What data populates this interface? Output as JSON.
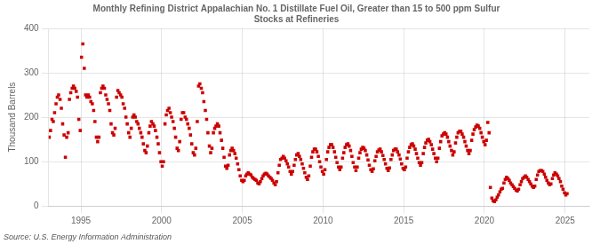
{
  "chart_data": {
    "type": "scatter",
    "title": "Monthly Refining District Appalachian No. 1 Distillate Fuel Oil, Greater than 15 to 500 ppm Sulfur\nStocks at Refineries",
    "ylabel": "Thousand Barrels",
    "annotations": [
      "Source: U.S. Energy Information Administration"
    ],
    "color": "#cc0000",
    "marker": "square",
    "grid": true,
    "xlim": [
      1993.0,
      2026.5
    ],
    "ylim": [
      0,
      400
    ],
    "xticks": [
      1995,
      2000,
      2005,
      2010,
      2015,
      2020,
      2025
    ],
    "yticks": [
      0,
      100,
      200,
      300,
      400
    ],
    "x": [
      1993.04,
      1993.12,
      1993.21,
      1993.29,
      1993.37,
      1993.46,
      1993.54,
      1993.62,
      1993.71,
      1993.79,
      1993.87,
      1993.96,
      1994.04,
      1994.12,
      1994.21,
      1994.29,
      1994.37,
      1994.46,
      1994.54,
      1994.62,
      1994.71,
      1994.79,
      1994.87,
      1994.96,
      1995.04,
      1995.12,
      1995.21,
      1995.29,
      1995.37,
      1995.46,
      1995.54,
      1995.62,
      1995.71,
      1995.79,
      1995.87,
      1995.96,
      1996.04,
      1996.12,
      1996.21,
      1996.29,
      1996.37,
      1996.46,
      1996.54,
      1996.62,
      1996.71,
      1996.79,
      1996.87,
      1996.96,
      1997.04,
      1997.12,
      1997.21,
      1997.29,
      1997.37,
      1997.46,
      1997.54,
      1997.62,
      1997.71,
      1997.79,
      1997.87,
      1997.96,
      1998.04,
      1998.12,
      1998.21,
      1998.29,
      1998.37,
      1998.46,
      1998.54,
      1998.62,
      1998.71,
      1998.79,
      1998.87,
      1998.96,
      1999.04,
      1999.12,
      1999.21,
      1999.29,
      1999.37,
      1999.46,
      1999.54,
      1999.62,
      1999.71,
      1999.79,
      1999.87,
      1999.96,
      2000.04,
      2000.12,
      2000.21,
      2000.29,
      2000.37,
      2000.46,
      2000.54,
      2000.62,
      2000.71,
      2000.79,
      2000.87,
      2000.96,
      2001.04,
      2001.12,
      2001.21,
      2001.29,
      2001.37,
      2001.46,
      2001.54,
      2001.62,
      2001.71,
      2001.79,
      2001.87,
      2001.96,
      2002.04,
      2002.12,
      2002.21,
      2002.29,
      2002.37,
      2002.46,
      2002.54,
      2002.62,
      2002.71,
      2002.79,
      2002.87,
      2002.96,
      2003.04,
      2003.12,
      2003.21,
      2003.29,
      2003.37,
      2003.46,
      2003.54,
      2003.62,
      2003.71,
      2003.79,
      2003.87,
      2003.96,
      2004.04,
      2004.12,
      2004.21,
      2004.29,
      2004.37,
      2004.46,
      2004.54,
      2004.62,
      2004.71,
      2004.79,
      2004.87,
      2004.96,
      2005.04,
      2005.12,
      2005.21,
      2005.29,
      2005.37,
      2005.46,
      2005.54,
      2005.62,
      2005.71,
      2005.79,
      2005.87,
      2005.96,
      2006.04,
      2006.12,
      2006.21,
      2006.29,
      2006.37,
      2006.46,
      2006.54,
      2006.62,
      2006.71,
      2006.79,
      2006.87,
      2006.96,
      2007.04,
      2007.12,
      2007.21,
      2007.29,
      2007.37,
      2007.46,
      2007.54,
      2007.62,
      2007.71,
      2007.79,
      2007.87,
      2007.96,
      2008.04,
      2008.12,
      2008.21,
      2008.29,
      2008.37,
      2008.46,
      2008.54,
      2008.62,
      2008.71,
      2008.79,
      2008.87,
      2008.96,
      2009.04,
      2009.12,
      2009.21,
      2009.29,
      2009.37,
      2009.46,
      2009.54,
      2009.62,
      2009.71,
      2009.79,
      2009.87,
      2009.96,
      2010.04,
      2010.12,
      2010.21,
      2010.29,
      2010.37,
      2010.46,
      2010.54,
      2010.62,
      2010.71,
      2010.79,
      2010.87,
      2010.96,
      2011.04,
      2011.12,
      2011.21,
      2011.29,
      2011.37,
      2011.46,
      2011.54,
      2011.62,
      2011.71,
      2011.79,
      2011.87,
      2011.96,
      2012.04,
      2012.12,
      2012.21,
      2012.29,
      2012.37,
      2012.46,
      2012.54,
      2012.62,
      2012.71,
      2012.79,
      2012.87,
      2012.96,
      2013.04,
      2013.12,
      2013.21,
      2013.29,
      2013.37,
      2013.46,
      2013.54,
      2013.62,
      2013.71,
      2013.79,
      2013.87,
      2013.96,
      2014.04,
      2014.12,
      2014.21,
      2014.29,
      2014.37,
      2014.46,
      2014.54,
      2014.62,
      2014.71,
      2014.79,
      2014.87,
      2014.96,
      2015.04,
      2015.12,
      2015.21,
      2015.29,
      2015.37,
      2015.46,
      2015.54,
      2015.62,
      2015.71,
      2015.79,
      2015.87,
      2015.96,
      2016.04,
      2016.12,
      2016.21,
      2016.29,
      2016.37,
      2016.46,
      2016.54,
      2016.62,
      2016.71,
      2016.79,
      2016.87,
      2016.96,
      2017.04,
      2017.12,
      2017.21,
      2017.29,
      2017.37,
      2017.46,
      2017.54,
      2017.62,
      2017.71,
      2017.79,
      2017.87,
      2017.96,
      2018.04,
      2018.12,
      2018.21,
      2018.29,
      2018.37,
      2018.46,
      2018.54,
      2018.62,
      2018.71,
      2018.79,
      2018.87,
      2018.96,
      2019.04,
      2019.12,
      2019.21,
      2019.29,
      2019.37,
      2019.46,
      2019.54,
      2019.62,
      2019.71,
      2019.79,
      2019.87,
      2019.96,
      2020.04,
      2020.12,
      2020.21,
      2020.29,
      2020.37,
      2020.46,
      2020.54,
      2020.62,
      2020.71,
      2020.79,
      2020.87,
      2020.96,
      2021.04,
      2021.12,
      2021.21,
      2021.29,
      2021.37,
      2021.46,
      2021.54,
      2021.62,
      2021.71,
      2021.79,
      2021.87,
      2021.96,
      2022.04,
      2022.12,
      2022.21,
      2022.29,
      2022.37,
      2022.46,
      2022.54,
      2022.62,
      2022.71,
      2022.79,
      2022.87,
      2022.96,
      2023.04,
      2023.12,
      2023.21,
      2023.29,
      2023.37,
      2023.46,
      2023.54,
      2023.62,
      2023.71,
      2023.79,
      2023.87,
      2023.96,
      2024.04,
      2024.12,
      2024.21,
      2024.29,
      2024.37,
      2024.46,
      2024.54,
      2024.62,
      2024.71,
      2024.79,
      2024.87,
      2024.96,
      2025.04,
      2025.12
    ],
    "values": [
      155,
      170,
      195,
      190,
      210,
      230,
      245,
      250,
      240,
      220,
      185,
      160,
      110,
      155,
      165,
      240,
      255,
      265,
      270,
      265,
      258,
      245,
      195,
      170,
      335,
      365,
      310,
      250,
      245,
      250,
      245,
      235,
      230,
      215,
      190,
      155,
      145,
      155,
      255,
      265,
      270,
      265,
      250,
      240,
      230,
      215,
      185,
      165,
      160,
      175,
      245,
      260,
      255,
      250,
      245,
      230,
      220,
      200,
      185,
      165,
      155,
      175,
      200,
      205,
      200,
      190,
      185,
      175,
      165,
      155,
      140,
      125,
      120,
      135,
      165,
      180,
      190,
      185,
      180,
      170,
      155,
      140,
      120,
      100,
      90,
      100,
      185,
      205,
      215,
      220,
      210,
      200,
      190,
      175,
      155,
      130,
      125,
      145,
      195,
      210,
      210,
      200,
      195,
      185,
      175,
      160,
      140,
      120,
      115,
      130,
      190,
      270,
      275,
      265,
      255,
      235,
      215,
      195,
      165,
      135,
      120,
      130,
      165,
      175,
      180,
      185,
      180,
      165,
      148,
      130,
      110,
      90,
      85,
      92,
      115,
      125,
      130,
      125,
      118,
      108,
      95,
      82,
      68,
      58,
      55,
      58,
      68,
      72,
      75,
      72,
      70,
      65,
      62,
      60,
      58,
      52,
      50,
      55,
      62,
      68,
      72,
      74,
      72,
      68,
      65,
      62,
      58,
      52,
      48,
      55,
      75,
      92,
      105,
      108,
      112,
      108,
      102,
      95,
      88,
      78,
      72,
      78,
      92,
      105,
      115,
      118,
      112,
      105,
      95,
      85,
      75,
      65,
      60,
      68,
      90,
      110,
      122,
      128,
      128,
      122,
      112,
      100,
      88,
      78,
      72,
      82,
      105,
      122,
      132,
      138,
      138,
      132,
      122,
      110,
      98,
      88,
      82,
      88,
      108,
      120,
      132,
      138,
      140,
      135,
      125,
      112,
      98,
      88,
      80,
      88,
      108,
      120,
      128,
      132,
      130,
      125,
      115,
      104,
      92,
      82,
      78,
      84,
      102,
      112,
      122,
      126,
      128,
      122,
      114,
      105,
      95,
      85,
      80,
      86,
      105,
      115,
      125,
      128,
      128,
      122,
      115,
      106,
      95,
      85,
      82,
      88,
      108,
      122,
      132,
      138,
      140,
      135,
      128,
      118,
      108,
      98,
      92,
      98,
      118,
      132,
      142,
      148,
      150,
      145,
      138,
      128,
      118,
      108,
      100,
      108,
      130,
      145,
      158,
      162,
      165,
      162,
      155,
      145,
      135,
      125,
      115,
      122,
      142,
      155,
      165,
      168,
      168,
      162,
      155,
      145,
      135,
      125,
      118,
      125,
      148,
      162,
      172,
      178,
      182,
      180,
      175,
      165,
      155,
      145,
      138,
      148,
      188,
      165,
      42,
      18,
      12,
      10,
      14,
      20,
      25,
      32,
      38,
      40,
      52,
      60,
      65,
      62,
      58,
      52,
      48,
      44,
      40,
      36,
      34,
      38,
      48,
      55,
      62,
      65,
      68,
      65,
      60,
      55,
      50,
      45,
      42,
      45,
      60,
      70,
      78,
      80,
      80,
      78,
      72,
      65,
      58,
      52,
      48,
      50,
      62,
      70,
      75,
      72,
      68,
      62,
      55,
      45,
      38,
      30,
      25,
      28
    ]
  }
}
